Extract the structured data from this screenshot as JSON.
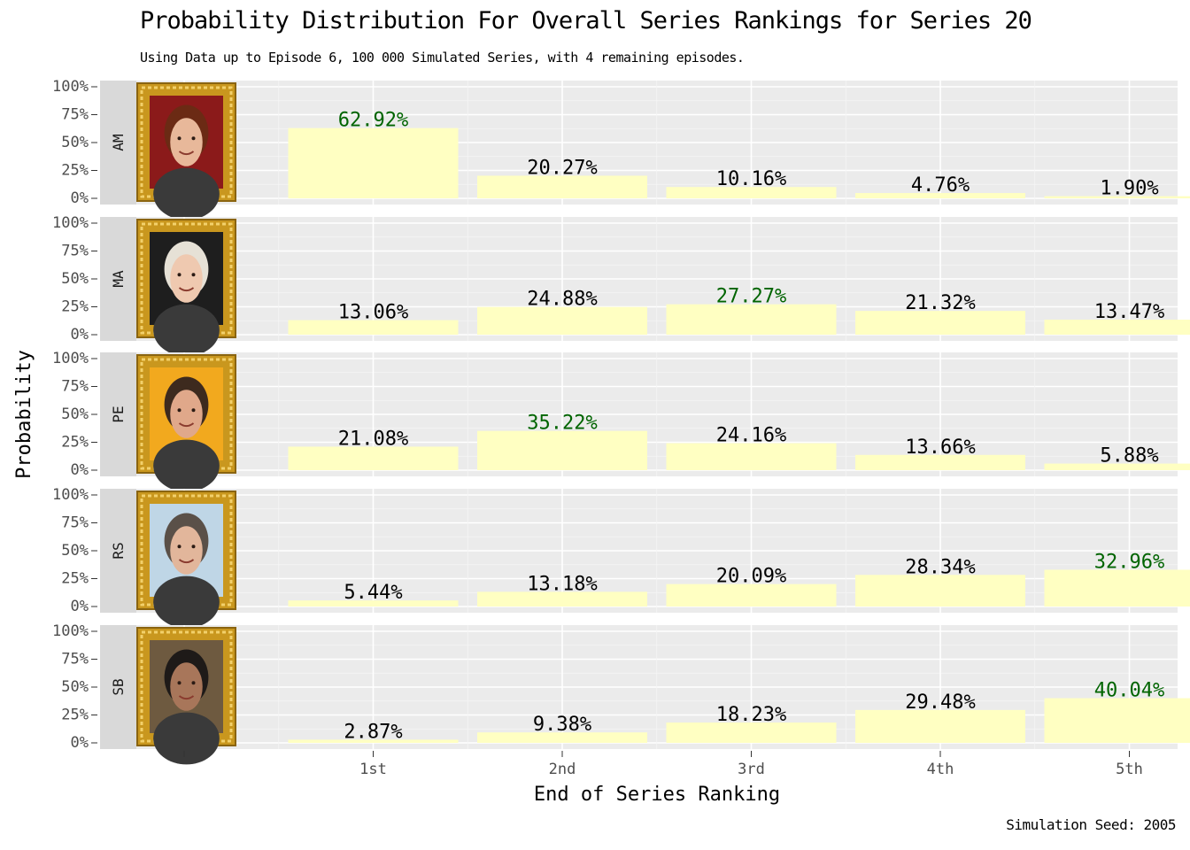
{
  "chart_data": {
    "type": "bar",
    "title": "Probability Distribution For Overall Series Rankings for Series 20",
    "subtitle": "Using Data up to Episode 6, 100 000 Simulated Series, with 4 remaining episodes.",
    "caption": "Simulation Seed: 2005",
    "xlabel": "End of Series Ranking",
    "ylabel": "Probability",
    "categories": [
      "1st",
      "2nd",
      "3rd",
      "4th",
      "5th"
    ],
    "y_ticks": [
      "0%",
      "25%",
      "50%",
      "75%",
      "100%"
    ],
    "ylim": [
      0,
      100
    ],
    "bar_color": "#FFFFC2",
    "highlight_color": "#006400",
    "label_color": "#000000",
    "panel_background": "#EBEBEB",
    "strip_background": "#D9D9D9",
    "grid": true,
    "portrait_frame": "gold-ornate-frame",
    "series": [
      {
        "name": "AM",
        "values": [
          62.92,
          20.27,
          10.16,
          4.76,
          1.9
        ],
        "labels": [
          "62.92%",
          "20.27%",
          "10.16%",
          "4.76%",
          "1.90%"
        ],
        "highlight_index": 0,
        "portrait_bg": "#8B1A1A",
        "skin": "#E8B89A",
        "hair": "#6B2A14"
      },
      {
        "name": "MA",
        "values": [
          13.06,
          24.88,
          27.27,
          21.32,
          13.47
        ],
        "labels": [
          "13.06%",
          "24.88%",
          "27.27%",
          "21.32%",
          "13.47%"
        ],
        "highlight_index": 2,
        "portrait_bg": "#1E1E1E",
        "skin": "#EFC9B0",
        "hair": "#E6E1D6"
      },
      {
        "name": "PE",
        "values": [
          21.08,
          35.22,
          24.16,
          13.66,
          5.88
        ],
        "labels": [
          "21.08%",
          "35.22%",
          "24.16%",
          "13.66%",
          "5.88%"
        ],
        "highlight_index": 1,
        "portrait_bg": "#F2A91E",
        "skin": "#E0A88A",
        "hair": "#3D2A1E"
      },
      {
        "name": "RS",
        "values": [
          5.44,
          13.18,
          20.09,
          28.34,
          32.96
        ],
        "labels": [
          "5.44%",
          "13.18%",
          "20.09%",
          "28.34%",
          "32.96%"
        ],
        "highlight_index": 4,
        "portrait_bg": "#BFD6E6",
        "skin": "#E2B69B",
        "hair": "#5A5048"
      },
      {
        "name": "SB",
        "values": [
          2.87,
          9.38,
          18.23,
          29.48,
          40.04
        ],
        "labels": [
          "2.87%",
          "9.38%",
          "18.23%",
          "29.48%",
          "40.04%"
        ],
        "highlight_index": 4,
        "portrait_bg": "#6E5A40",
        "skin": "#A8765A",
        "hair": "#1E1A18"
      }
    ]
  }
}
